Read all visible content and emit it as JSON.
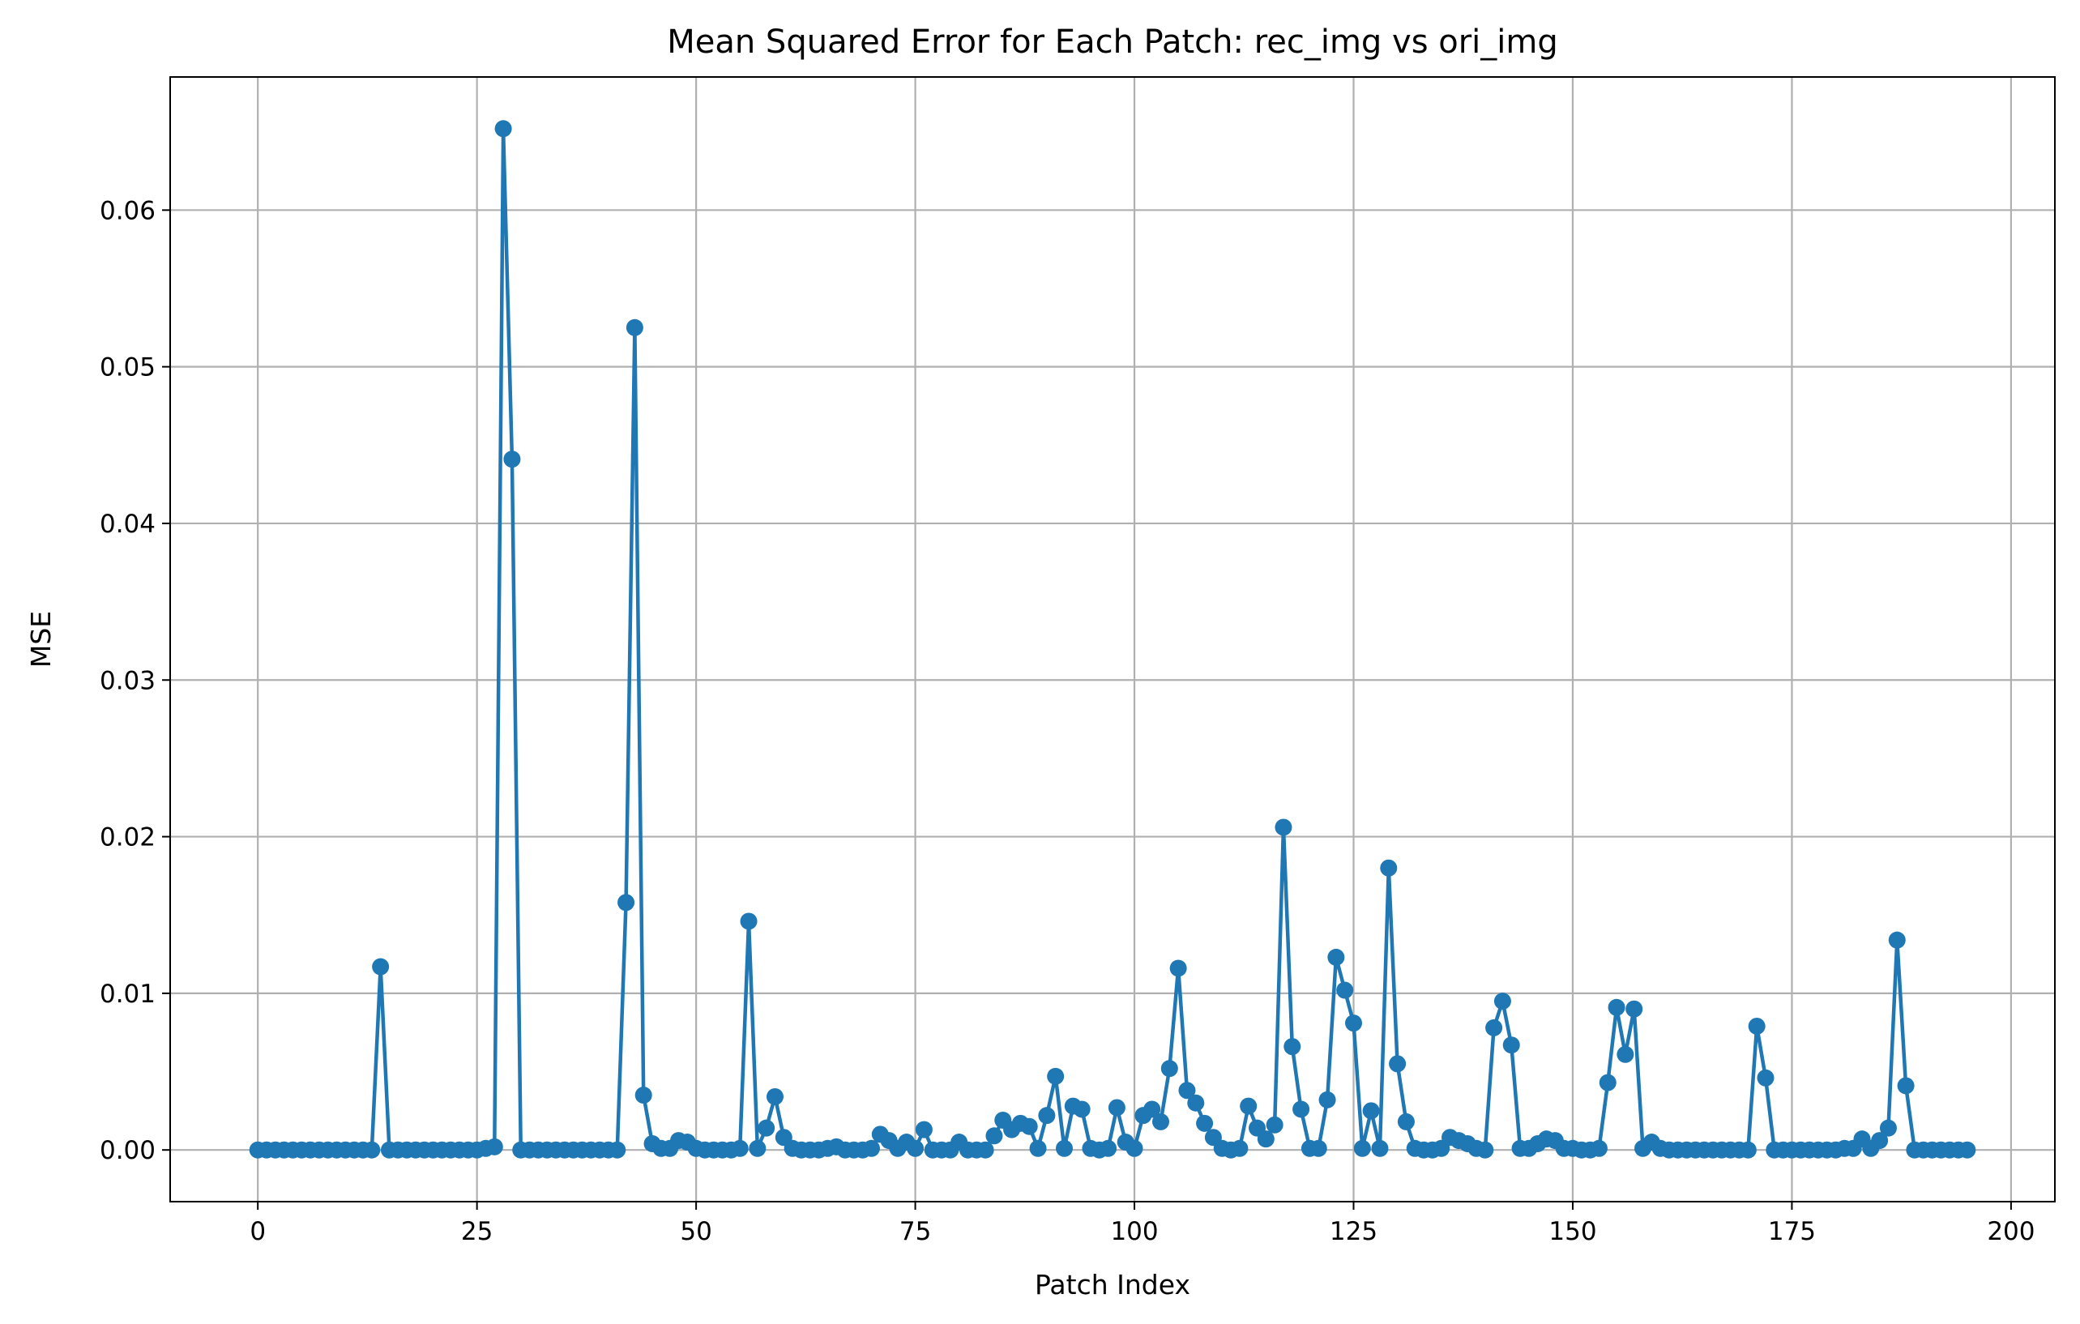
{
  "chart_data": {
    "type": "line",
    "title": "Mean Squared Error for Each Patch: rec_img vs ori_img",
    "xlabel": "Patch Index",
    "ylabel": "MSE",
    "xlim": [
      -10,
      205
    ],
    "ylim": [
      -0.0033,
      0.0685
    ],
    "xticks": [
      0,
      25,
      50,
      75,
      100,
      125,
      150,
      175,
      200
    ],
    "yticks": [
      0.0,
      0.01,
      0.02,
      0.03,
      0.04,
      0.05,
      0.06
    ],
    "xtick_labels": [
      "0",
      "25",
      "50",
      "75",
      "100",
      "125",
      "150",
      "175",
      "200"
    ],
    "ytick_labels": [
      "0.00",
      "0.01",
      "0.02",
      "0.03",
      "0.04",
      "0.05",
      "0.06"
    ],
    "grid": true,
    "legend": "none",
    "marker": "circle",
    "color": "#1f77b4",
    "series": [
      {
        "x_start": 0,
        "x_step": 1,
        "values": [
          0,
          0,
          0,
          0,
          0,
          0,
          0,
          0,
          0,
          0,
          0,
          0,
          0,
          0,
          0.0117,
          0,
          0,
          0,
          0,
          0,
          0,
          0,
          0,
          0,
          0,
          0,
          0.0001,
          0.0002,
          0.0652,
          0.0441,
          0,
          0,
          0,
          0,
          0,
          0,
          0,
          0,
          0,
          0,
          0,
          0,
          0.0158,
          0.0525,
          0.0035,
          0.0004,
          0.0001,
          0.0001,
          0.0006,
          0.0005,
          0.0001,
          0,
          0,
          0,
          0,
          0.0001,
          0.0146,
          0.0001,
          0.0014,
          0.0034,
          0.0008,
          0.0001,
          0,
          0,
          0,
          0.0001,
          0.0002,
          0,
          0,
          0,
          0.0001,
          0.001,
          0.0006,
          0.0001,
          0.0005,
          0.0001,
          0.0013,
          0,
          0,
          0,
          0.0005,
          0,
          0,
          0,
          0.0009,
          0.0019,
          0.0013,
          0.0017,
          0.0015,
          0.0001,
          0.0022,
          0.0047,
          0.0001,
          0.0028,
          0.0026,
          0.0001,
          0,
          0.0001,
          0.0027,
          0.0005,
          0.0001,
          0.0022,
          0.0026,
          0.0018,
          0.0052,
          0.0116,
          0.0038,
          0.003,
          0.0017,
          0.0008,
          0.0001,
          0,
          0.0001,
          0.0028,
          0.0014,
          0.0007,
          0.0016,
          0.0206,
          0.0066,
          0.0026,
          0.0001,
          0.0001,
          0.0032,
          0.0123,
          0.0102,
          0.0081,
          0.0001,
          0.0025,
          0.0001,
          0.018,
          0.0055,
          0.0018,
          0.0001,
          0,
          0,
          0.0001,
          0.0008,
          0.0006,
          0.0004,
          0.0001,
          0,
          0.0078,
          0.0095,
          0.0067,
          0.0001,
          0.0001,
          0.0004,
          0.0007,
          0.0006,
          0.0001,
          0.0001,
          0,
          0,
          0.0001,
          0.0043,
          0.0091,
          0.0061,
          0.009,
          0.0001,
          0.0005,
          0.0001,
          0,
          0,
          0,
          0,
          0,
          0,
          0,
          0,
          0,
          0,
          0.0079,
          0.0046,
          0,
          0,
          0,
          0,
          0,
          0,
          0,
          0,
          0.0001,
          0.0001,
          0.0007,
          0.0001,
          0.0006,
          0.0014,
          0.0134,
          0.0041,
          0,
          0,
          0,
          0,
          0,
          0,
          0
        ]
      }
    ]
  }
}
